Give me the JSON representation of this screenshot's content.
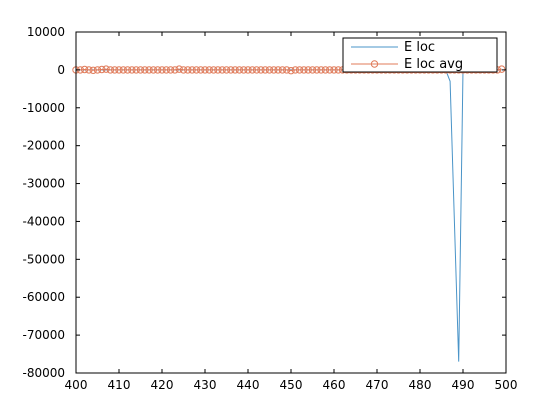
{
  "chart_data": {
    "type": "line",
    "title": "",
    "xlabel": "",
    "ylabel": "",
    "xlim": [
      400,
      500
    ],
    "ylim": [
      -80000,
      10000
    ],
    "x_ticks": [
      "400",
      "410",
      "420",
      "430",
      "440",
      "450",
      "460",
      "470",
      "480",
      "490",
      "500"
    ],
    "y_ticks": [
      "10000",
      "0",
      "-10000",
      "-20000",
      "-30000",
      "-40000",
      "-50000",
      "-60000",
      "-70000",
      "-80000"
    ],
    "grid": false,
    "legend": {
      "placement": "top-right"
    },
    "series": [
      {
        "name": "E loc",
        "style": "line",
        "color": "#4a94c8",
        "x": [
          400,
          405,
          410,
          415,
          420,
          425,
          430,
          435,
          440,
          445,
          450,
          455,
          460,
          465,
          470,
          475,
          480,
          485,
          486,
          487,
          488,
          489,
          490,
          491,
          492,
          495,
          499
        ],
        "y": [
          0,
          0,
          0,
          0,
          0,
          0,
          0,
          0,
          0,
          0,
          0,
          0,
          0,
          0,
          0,
          0,
          0,
          0,
          -100,
          -3000,
          -40000,
          -77000,
          0,
          0,
          0,
          0,
          0
        ]
      },
      {
        "name": "E loc avg",
        "style": "line-circle-markers",
        "color": "#e07b5a",
        "x": [
          400,
          401,
          402,
          403,
          404,
          405,
          406,
          407,
          408,
          409,
          410,
          411,
          412,
          413,
          414,
          415,
          416,
          417,
          418,
          419,
          420,
          421,
          422,
          423,
          424,
          425,
          426,
          427,
          428,
          429,
          430,
          431,
          432,
          433,
          434,
          435,
          436,
          437,
          438,
          439,
          440,
          441,
          442,
          443,
          444,
          445,
          446,
          447,
          448,
          449,
          450,
          451,
          452,
          453,
          454,
          455,
          456,
          457,
          458,
          459,
          460,
          461,
          462,
          463,
          464,
          465,
          466,
          467,
          468,
          469,
          470,
          471,
          472,
          473,
          474,
          475,
          476,
          477,
          478,
          479,
          480,
          481,
          482,
          483,
          484,
          485,
          486,
          487,
          488,
          489,
          490,
          491,
          492,
          493,
          494,
          495,
          496,
          497,
          498,
          499
        ],
        "y": [
          0,
          0,
          100,
          0,
          -100,
          0,
          100,
          200,
          0,
          0,
          0,
          0,
          0,
          0,
          0,
          0,
          0,
          0,
          0,
          0,
          0,
          0,
          0,
          0,
          200,
          0,
          0,
          0,
          0,
          0,
          0,
          0,
          0,
          0,
          0,
          0,
          0,
          0,
          0,
          0,
          0,
          0,
          0,
          0,
          0,
          0,
          0,
          0,
          0,
          0,
          -200,
          0,
          0,
          0,
          0,
          0,
          0,
          0,
          0,
          0,
          0,
          0,
          0,
          0,
          0,
          0,
          0,
          0,
          0,
          0,
          0,
          0,
          0,
          0,
          0,
          0,
          0,
          0,
          0,
          0,
          0,
          0,
          0,
          0,
          0,
          0,
          0,
          0,
          0,
          0,
          0,
          0,
          0,
          0,
          0,
          0,
          0,
          0,
          0,
          200
        ]
      }
    ]
  }
}
